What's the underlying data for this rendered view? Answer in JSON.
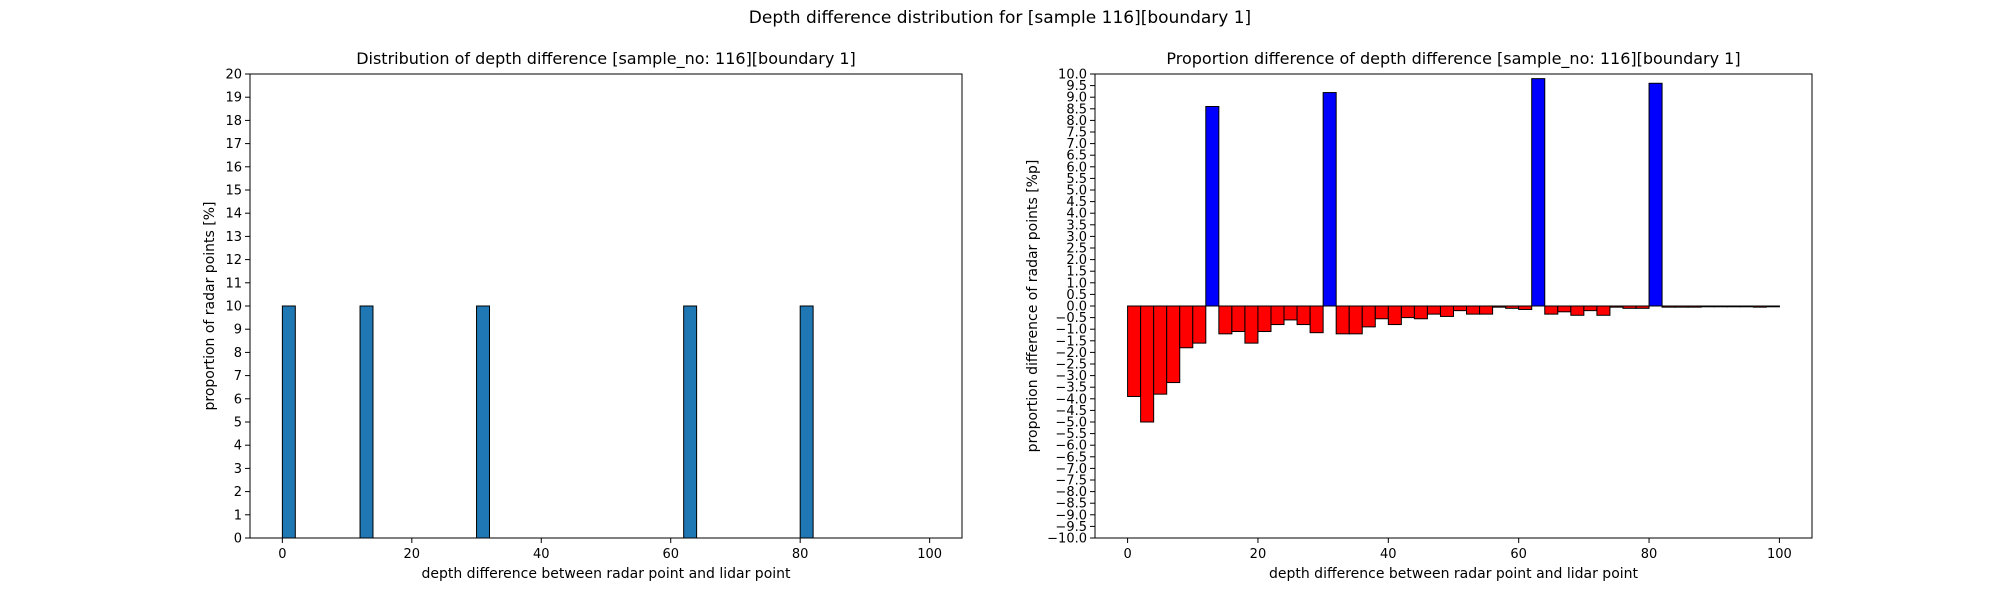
{
  "figure": {
    "suptitle": "Depth difference distribution for [sample 116][boundary 1]"
  },
  "chart_data": [
    {
      "type": "bar",
      "title": "Distribution of depth difference [sample_no: 116][boundary 1]",
      "xlabel": "depth difference between radar point and lidar point",
      "ylabel": "proportion of radar points [%]",
      "xlim": [
        -5,
        105
      ],
      "ylim": [
        0,
        20
      ],
      "xticks": [
        0,
        20,
        40,
        60,
        80,
        100
      ],
      "yticks": [
        0,
        1,
        2,
        3,
        4,
        5,
        6,
        7,
        8,
        9,
        10,
        11,
        12,
        13,
        14,
        15,
        16,
        17,
        18,
        19,
        20
      ],
      "bin_width": 2,
      "bar_color": "#1f77b4",
      "edge_color": "#000000",
      "x": [
        1,
        13,
        31,
        63,
        81
      ],
      "values": [
        10,
        10,
        10,
        10,
        10
      ]
    },
    {
      "type": "bar",
      "title": "Proportion difference of depth difference [sample_no: 116][boundary 1]",
      "xlabel": "depth difference between radar point and lidar point",
      "ylabel": "proportion difference of radar points [%p]",
      "xlim": [
        -5,
        105
      ],
      "ylim": [
        -10,
        10
      ],
      "xticks": [
        0,
        20,
        40,
        60,
        80,
        100
      ],
      "ytick_step": 0.5,
      "bin_width": 2,
      "positive_color": "#0000ff",
      "negative_color": "#ff0000",
      "edge_color": "#000000",
      "x": [
        1,
        3,
        5,
        7,
        9,
        11,
        13,
        15,
        17,
        19,
        21,
        23,
        25,
        27,
        29,
        31,
        33,
        35,
        37,
        39,
        41,
        43,
        45,
        47,
        49,
        51,
        53,
        55,
        57,
        59,
        61,
        63,
        65,
        67,
        69,
        71,
        73,
        75,
        77,
        79,
        81,
        83,
        85,
        87,
        89,
        91,
        93,
        95,
        97,
        99
      ],
      "values": [
        -3.9,
        -5.0,
        -3.8,
        -3.3,
        -1.8,
        -1.6,
        8.6,
        -1.2,
        -1.1,
        -1.6,
        -1.1,
        -0.8,
        -0.6,
        -0.8,
        -1.15,
        9.2,
        -1.2,
        -1.2,
        -0.9,
        -0.55,
        -0.8,
        -0.5,
        -0.55,
        -0.35,
        -0.45,
        -0.2,
        -0.35,
        -0.35,
        -0.05,
        -0.1,
        -0.15,
        9.8,
        -0.35,
        -0.25,
        -0.4,
        -0.2,
        -0.4,
        -0.05,
        -0.1,
        -0.1,
        9.6,
        -0.05,
        -0.05,
        -0.05,
        -0.02,
        -0.02,
        -0.02,
        -0.02,
        -0.05,
        -0.02
      ]
    }
  ]
}
